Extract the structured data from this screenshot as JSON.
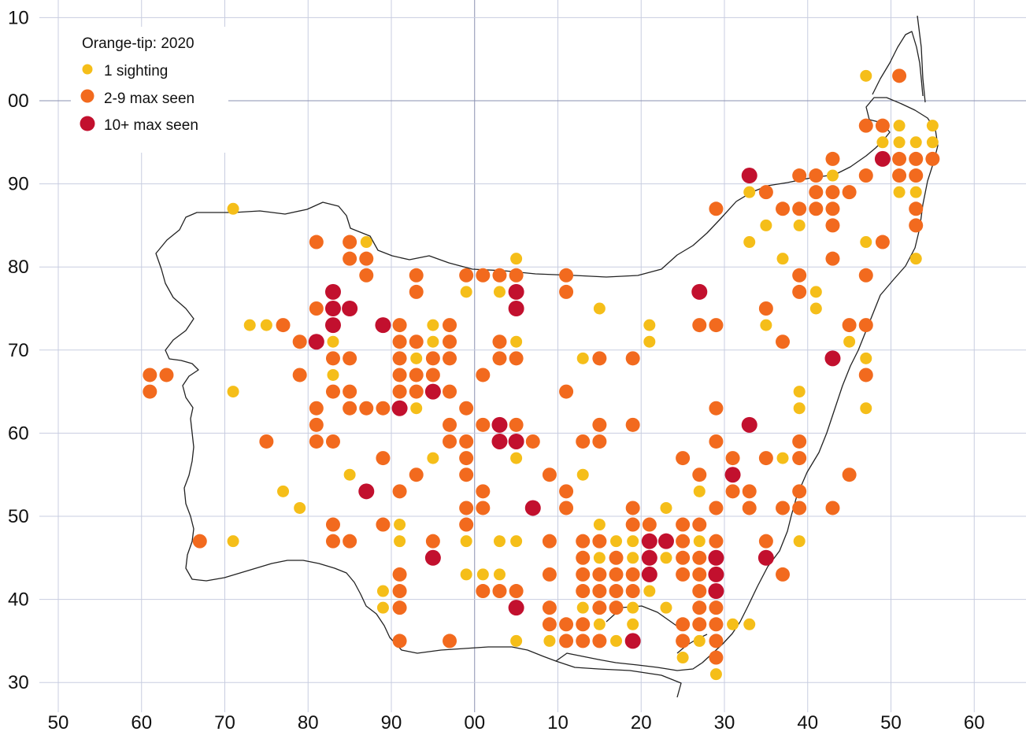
{
  "legend": {
    "title": "Orange-tip:  2020",
    "items": [
      {
        "key": "c1",
        "label": "1 sighting",
        "color": "#F5BE19"
      },
      {
        "key": "c2",
        "label": "2-9 max seen",
        "color": "#F26A1E"
      },
      {
        "key": "c3",
        "label": "10+ max seen",
        "color": "#C2102E"
      }
    ]
  },
  "axes": {
    "x_ticks": [
      "50",
      "60",
      "70",
      "80",
      "90",
      "00",
      "10",
      "20",
      "30",
      "40",
      "50",
      "60"
    ],
    "y_ticks": [
      "10",
      "00",
      "90",
      "80",
      "70",
      "60",
      "50",
      "40",
      "30"
    ],
    "grid": true
  },
  "colors": {
    "grid": "#c8cde0",
    "grid_major": "#8a90b0",
    "outline": "#222222"
  },
  "sightings": {
    "c1": [
      [
        71,
        87
      ],
      [
        73,
        73
      ],
      [
        75,
        73
      ],
      [
        83,
        71
      ],
      [
        83,
        67
      ],
      [
        85,
        55
      ],
      [
        77,
        53
      ],
      [
        79,
        51
      ],
      [
        71,
        65
      ],
      [
        71,
        47
      ],
      [
        87,
        83
      ],
      [
        89,
        41
      ],
      [
        89,
        39
      ],
      [
        91,
        49
      ],
      [
        91,
        47
      ],
      [
        93,
        69
      ],
      [
        93,
        63
      ],
      [
        95,
        73
      ],
      [
        95,
        71
      ],
      [
        95,
        57
      ],
      [
        99,
        77
      ],
      [
        99,
        47
      ],
      [
        99,
        43
      ],
      [
        1,
        43
      ],
      [
        3,
        77
      ],
      [
        3,
        47
      ],
      [
        3,
        43
      ],
      [
        5,
        81
      ],
      [
        5,
        71
      ],
      [
        5,
        57
      ],
      [
        5,
        47
      ],
      [
        5,
        35
      ],
      [
        9,
        35
      ],
      [
        13,
        69
      ],
      [
        13,
        55
      ],
      [
        13,
        39
      ],
      [
        15,
        75
      ],
      [
        15,
        49
      ],
      [
        15,
        45
      ],
      [
        15,
        37
      ],
      [
        17,
        47
      ],
      [
        17,
        35
      ],
      [
        19,
        47
      ],
      [
        19,
        45
      ],
      [
        19,
        39
      ],
      [
        19,
        37
      ],
      [
        21,
        73
      ],
      [
        21,
        71
      ],
      [
        21,
        41
      ],
      [
        23,
        51
      ],
      [
        23,
        45
      ],
      [
        23,
        39
      ],
      [
        25,
        33
      ],
      [
        27,
        53
      ],
      [
        27,
        47
      ],
      [
        27,
        35
      ],
      [
        29,
        31
      ],
      [
        31,
        37
      ],
      [
        33,
        89
      ],
      [
        33,
        83
      ],
      [
        33,
        37
      ],
      [
        35,
        85
      ],
      [
        35,
        73
      ],
      [
        37,
        81
      ],
      [
        37,
        57
      ],
      [
        39,
        85
      ],
      [
        39,
        65
      ],
      [
        39,
        63
      ],
      [
        39,
        47
      ],
      [
        41,
        77
      ],
      [
        41,
        75
      ],
      [
        43,
        91
      ],
      [
        45,
        71
      ],
      [
        47,
        103
      ],
      [
        47,
        83
      ],
      [
        47,
        69
      ],
      [
        47,
        63
      ],
      [
        49,
        95
      ],
      [
        51,
        97
      ],
      [
        51,
        95
      ],
      [
        51,
        89
      ],
      [
        53,
        95
      ],
      [
        53,
        89
      ],
      [
        53,
        81
      ],
      [
        55,
        97
      ],
      [
        55,
        95
      ]
    ],
    "c2": [
      [
        61,
        67
      ],
      [
        61,
        65
      ],
      [
        63,
        67
      ],
      [
        67,
        47
      ],
      [
        75,
        59
      ],
      [
        77,
        73
      ],
      [
        79,
        71
      ],
      [
        79,
        67
      ],
      [
        81,
        83
      ],
      [
        81,
        75
      ],
      [
        81,
        63
      ],
      [
        81,
        61
      ],
      [
        81,
        59
      ],
      [
        83,
        69
      ],
      [
        83,
        65
      ],
      [
        83,
        59
      ],
      [
        83,
        49
      ],
      [
        83,
        47
      ],
      [
        85,
        83
      ],
      [
        85,
        81
      ],
      [
        85,
        69
      ],
      [
        85,
        65
      ],
      [
        85,
        63
      ],
      [
        85,
        47
      ],
      [
        87,
        81
      ],
      [
        87,
        79
      ],
      [
        87,
        63
      ],
      [
        89,
        63
      ],
      [
        89,
        57
      ],
      [
        89,
        49
      ],
      [
        91,
        73
      ],
      [
        91,
        71
      ],
      [
        91,
        69
      ],
      [
        91,
        67
      ],
      [
        91,
        65
      ],
      [
        91,
        53
      ],
      [
        91,
        43
      ],
      [
        91,
        41
      ],
      [
        91,
        39
      ],
      [
        91,
        35
      ],
      [
        93,
        79
      ],
      [
        93,
        77
      ],
      [
        93,
        71
      ],
      [
        93,
        67
      ],
      [
        93,
        65
      ],
      [
        93,
        55
      ],
      [
        95,
        69
      ],
      [
        95,
        67
      ],
      [
        95,
        47
      ],
      [
        97,
        73
      ],
      [
        97,
        71
      ],
      [
        97,
        69
      ],
      [
        97,
        65
      ],
      [
        97,
        61
      ],
      [
        97,
        59
      ],
      [
        97,
        35
      ],
      [
        99,
        79
      ],
      [
        99,
        63
      ],
      [
        99,
        59
      ],
      [
        99,
        57
      ],
      [
        99,
        55
      ],
      [
        99,
        51
      ],
      [
        99,
        49
      ],
      [
        1,
        79
      ],
      [
        1,
        67
      ],
      [
        1,
        61
      ],
      [
        1,
        53
      ],
      [
        1,
        51
      ],
      [
        1,
        41
      ],
      [
        3,
        79
      ],
      [
        3,
        71
      ],
      [
        3,
        69
      ],
      [
        3,
        41
      ],
      [
        5,
        79
      ],
      [
        5,
        69
      ],
      [
        5,
        61
      ],
      [
        5,
        41
      ],
      [
        7,
        59
      ],
      [
        9,
        55
      ],
      [
        9,
        47
      ],
      [
        9,
        43
      ],
      [
        9,
        39
      ],
      [
        9,
        37
      ],
      [
        11,
        79
      ],
      [
        11,
        77
      ],
      [
        11,
        65
      ],
      [
        11,
        53
      ],
      [
        11,
        51
      ],
      [
        11,
        37
      ],
      [
        11,
        35
      ],
      [
        13,
        59
      ],
      [
        13,
        47
      ],
      [
        13,
        45
      ],
      [
        13,
        43
      ],
      [
        13,
        41
      ],
      [
        13,
        37
      ],
      [
        13,
        35
      ],
      [
        15,
        69
      ],
      [
        15,
        61
      ],
      [
        15,
        59
      ],
      [
        15,
        47
      ],
      [
        15,
        43
      ],
      [
        15,
        41
      ],
      [
        15,
        39
      ],
      [
        15,
        35
      ],
      [
        17,
        45
      ],
      [
        17,
        43
      ],
      [
        17,
        41
      ],
      [
        17,
        39
      ],
      [
        19,
        69
      ],
      [
        19,
        61
      ],
      [
        19,
        51
      ],
      [
        19,
        49
      ],
      [
        19,
        43
      ],
      [
        19,
        41
      ],
      [
        21,
        49
      ],
      [
        23,
        47
      ],
      [
        25,
        57
      ],
      [
        25,
        49
      ],
      [
        25,
        47
      ],
      [
        25,
        45
      ],
      [
        25,
        43
      ],
      [
        25,
        37
      ],
      [
        25,
        35
      ],
      [
        27,
        73
      ],
      [
        27,
        55
      ],
      [
        27,
        49
      ],
      [
        27,
        45
      ],
      [
        27,
        43
      ],
      [
        27,
        41
      ],
      [
        27,
        39
      ],
      [
        27,
        37
      ],
      [
        29,
        87
      ],
      [
        29,
        73
      ],
      [
        29,
        63
      ],
      [
        29,
        59
      ],
      [
        29,
        51
      ],
      [
        29,
        47
      ],
      [
        29,
        39
      ],
      [
        29,
        37
      ],
      [
        29,
        35
      ],
      [
        29,
        33
      ],
      [
        31,
        57
      ],
      [
        31,
        53
      ],
      [
        33,
        53
      ],
      [
        33,
        51
      ],
      [
        35,
        89
      ],
      [
        35,
        75
      ],
      [
        35,
        57
      ],
      [
        35,
        47
      ],
      [
        37,
        87
      ],
      [
        37,
        71
      ],
      [
        37,
        51
      ],
      [
        37,
        43
      ],
      [
        39,
        91
      ],
      [
        39,
        87
      ],
      [
        39,
        79
      ],
      [
        39,
        77
      ],
      [
        39,
        59
      ],
      [
        39,
        57
      ],
      [
        39,
        53
      ],
      [
        39,
        51
      ],
      [
        41,
        91
      ],
      [
        41,
        89
      ],
      [
        41,
        87
      ],
      [
        43,
        93
      ],
      [
        43,
        89
      ],
      [
        43,
        87
      ],
      [
        43,
        85
      ],
      [
        43,
        81
      ],
      [
        43,
        51
      ],
      [
        45,
        89
      ],
      [
        45,
        73
      ],
      [
        45,
        55
      ],
      [
        47,
        97
      ],
      [
        47,
        91
      ],
      [
        47,
        79
      ],
      [
        47,
        73
      ],
      [
        47,
        67
      ],
      [
        49,
        97
      ],
      [
        49,
        83
      ],
      [
        51,
        103
      ],
      [
        51,
        93
      ],
      [
        51,
        91
      ],
      [
        53,
        93
      ],
      [
        53,
        91
      ],
      [
        53,
        87
      ],
      [
        53,
        85
      ],
      [
        55,
        93
      ]
    ],
    "c3": [
      [
        81,
        71
      ],
      [
        83,
        77
      ],
      [
        83,
        75
      ],
      [
        83,
        73
      ],
      [
        85,
        75
      ],
      [
        87,
        53
      ],
      [
        89,
        73
      ],
      [
        91,
        63
      ],
      [
        95,
        65
      ],
      [
        95,
        45
      ],
      [
        3,
        61
      ],
      [
        3,
        59
      ],
      [
        5,
        77
      ],
      [
        5,
        75
      ],
      [
        5,
        59
      ],
      [
        5,
        39
      ],
      [
        7,
        51
      ],
      [
        19,
        35
      ],
      [
        21,
        47
      ],
      [
        21,
        45
      ],
      [
        21,
        43
      ],
      [
        23,
        47
      ],
      [
        27,
        77
      ],
      [
        29,
        45
      ],
      [
        29,
        43
      ],
      [
        29,
        41
      ],
      [
        31,
        55
      ],
      [
        33,
        91
      ],
      [
        33,
        61
      ],
      [
        35,
        45
      ],
      [
        43,
        69
      ],
      [
        49,
        93
      ]
    ]
  }
}
